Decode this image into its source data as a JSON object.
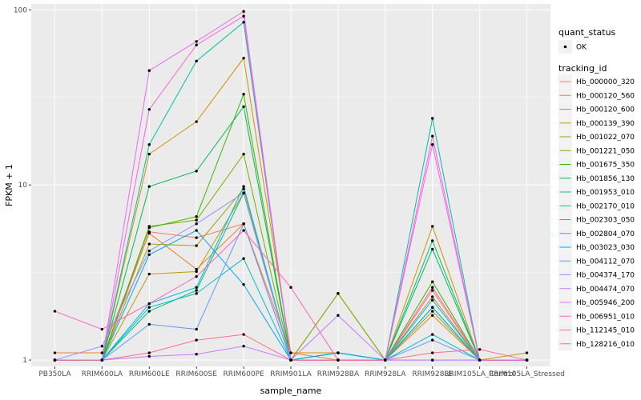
{
  "chart_data": {
    "type": "line",
    "xlabel": "sample_name",
    "ylabel": "FPKM + 1",
    "y_scale": "log10",
    "ylim": [
      0.92,
      108
    ],
    "y_ticks": [
      1,
      10,
      100
    ],
    "y_tick_labels": [
      "1",
      "10",
      "100"
    ],
    "categories": [
      "PB350LA",
      "RRIM600LA",
      "RRIM600LE",
      "RRIM600SE",
      "RRIM600PE",
      "RRIM901LA",
      "RRIM928BA",
      "RRIM928LA",
      "RRIM928LE",
      "RRIM105LA_Control",
      "RRIM105LA_Stressed"
    ],
    "background": "#ebebeb",
    "grid_color": "#ffffff",
    "point_color": "#000000",
    "legend": {
      "position": "right",
      "shape_title": "quant_status",
      "shape_entries": [
        "OK"
      ],
      "color_title": "tracking_id"
    },
    "series": [
      {
        "name": "Hb_000000_320",
        "color": "#F8766D",
        "values": [
          1.0,
          1.0,
          5.4,
          5.0,
          6.0,
          1.0,
          1.0,
          1.0,
          2.6,
          1.0,
          1.0
        ]
      },
      {
        "name": "Hb_000120_560",
        "color": "#EA8331",
        "values": [
          1.1,
          1.1,
          5.3,
          3.3,
          6.0,
          1.1,
          1.0,
          1.0,
          1.8,
          1.0,
          1.0
        ]
      },
      {
        "name": "Hb_000120_600",
        "color": "#D89000",
        "values": [
          1.0,
          1.0,
          15.0,
          23.0,
          53.0,
          1.1,
          1.1,
          1.0,
          5.8,
          1.0,
          1.0
        ]
      },
      {
        "name": "Hb_000139_390",
        "color": "#C09B00",
        "values": [
          1.0,
          1.0,
          3.1,
          3.2,
          9.0,
          1.0,
          1.0,
          1.0,
          2.3,
          1.0,
          1.1
        ]
      },
      {
        "name": "Hb_001022_070",
        "color": "#A3A500",
        "values": [
          1.0,
          1.0,
          4.6,
          4.5,
          9.5,
          1.0,
          2.4,
          1.0,
          2.0,
          1.0,
          1.0
        ]
      },
      {
        "name": "Hb_001221_050",
        "color": "#7CAE00",
        "values": [
          1.0,
          1.0,
          5.8,
          6.3,
          15.0,
          1.0,
          2.4,
          1.0,
          1.9,
          1.0,
          1.0
        ]
      },
      {
        "name": "Hb_001675_350",
        "color": "#39B600",
        "values": [
          1.0,
          1.0,
          5.7,
          6.6,
          33.0,
          1.0,
          1.1,
          1.0,
          2.8,
          1.0,
          1.0
        ]
      },
      {
        "name": "Hb_001856_130",
        "color": "#00BB4E",
        "values": [
          1.0,
          1.0,
          9.8,
          12.0,
          28.0,
          1.0,
          1.1,
          1.0,
          4.3,
          1.0,
          1.0
        ]
      },
      {
        "name": "Hb_001953_010",
        "color": "#00BF7D",
        "values": [
          1.0,
          1.0,
          1.9,
          2.5,
          9.0,
          1.0,
          1.1,
          1.0,
          4.8,
          1.0,
          1.0
        ]
      },
      {
        "name": "Hb_002170_010",
        "color": "#00C1A3",
        "values": [
          1.0,
          1.0,
          17.0,
          51.0,
          85.0,
          1.0,
          1.0,
          1.0,
          24.0,
          1.0,
          1.0
        ]
      },
      {
        "name": "Hb_002303_050",
        "color": "#00BFC4",
        "values": [
          1.0,
          1.0,
          2.0,
          2.4,
          3.8,
          1.0,
          1.1,
          1.0,
          1.4,
          1.0,
          1.0
        ]
      },
      {
        "name": "Hb_002804_070",
        "color": "#00B8E7",
        "values": [
          1.0,
          1.0,
          2.1,
          2.6,
          9.8,
          1.0,
          1.1,
          1.0,
          2.2,
          1.0,
          1.0
        ]
      },
      {
        "name": "Hb_003023_030",
        "color": "#00A9FF",
        "values": [
          1.0,
          1.0,
          4.0,
          5.5,
          2.7,
          1.0,
          1.1,
          1.0,
          2.0,
          1.0,
          1.0
        ]
      },
      {
        "name": "Hb_004112_070",
        "color": "#619CFF",
        "values": [
          1.0,
          1.0,
          1.6,
          1.5,
          6.0,
          1.0,
          1.0,
          1.0,
          1.3,
          1.0,
          1.0
        ]
      },
      {
        "name": "Hb_004374_170",
        "color": "#9590FF",
        "values": [
          1.0,
          1.2,
          4.2,
          6.0,
          9.0,
          1.0,
          1.0,
          1.0,
          1.0,
          1.0,
          1.0
        ]
      },
      {
        "name": "Hb_004474_070",
        "color": "#C77CFF",
        "values": [
          1.0,
          1.0,
          1.05,
          1.08,
          1.2,
          1.0,
          1.8,
          1.0,
          1.0,
          1.0,
          1.0
        ]
      },
      {
        "name": "Hb_005946_200",
        "color": "#E76BF3",
        "values": [
          1.0,
          1.0,
          45.0,
          66.0,
          98.0,
          1.0,
          1.0,
          1.0,
          17.0,
          1.0,
          1.0
        ]
      },
      {
        "name": "Hb_006951_010",
        "color": "#FA62DB",
        "values": [
          1.0,
          1.0,
          27.0,
          63.0,
          92.0,
          1.0,
          1.0,
          1.0,
          19.0,
          1.0,
          1.0
        ]
      },
      {
        "name": "Hb_112145_010",
        "color": "#FF62BC",
        "values": [
          1.9,
          1.5,
          2.1,
          3.0,
          5.5,
          2.6,
          1.0,
          1.0,
          2.5,
          1.0,
          1.0
        ]
      },
      {
        "name": "Hb_128216_010",
        "color": "#FF6C91",
        "values": [
          1.0,
          1.0,
          1.1,
          1.3,
          1.4,
          1.0,
          1.0,
          1.0,
          1.1,
          1.15,
          1.0
        ]
      }
    ]
  }
}
